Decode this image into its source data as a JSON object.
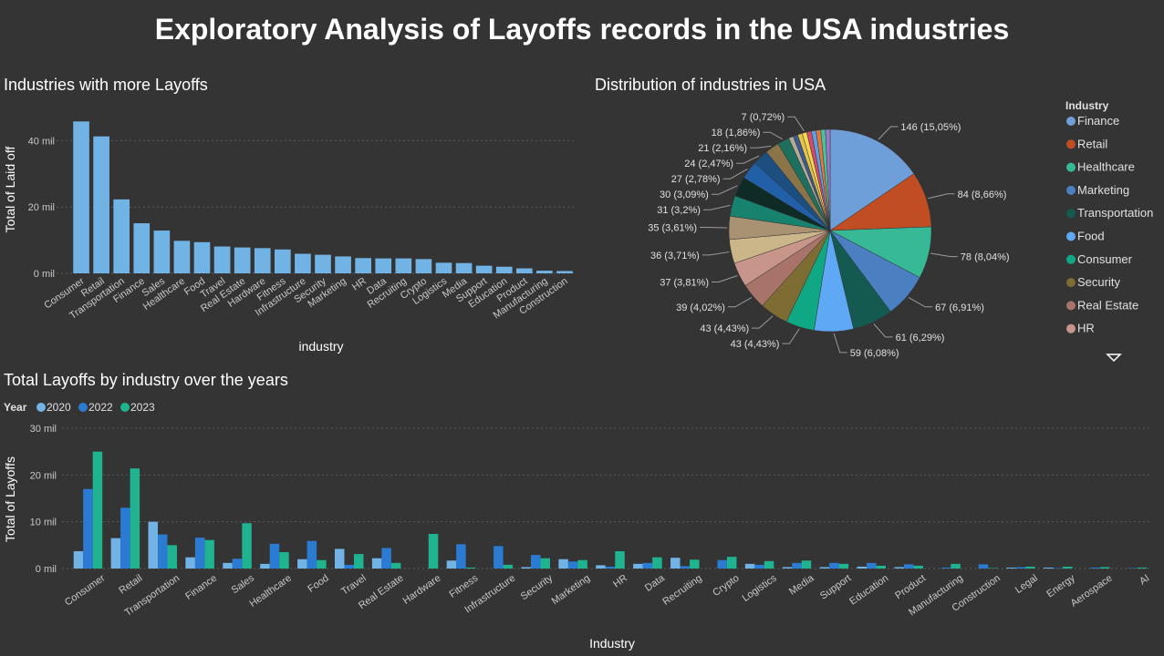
{
  "page": {
    "title": "Exploratory Analysis of Layoffs records in the USA industries"
  },
  "colors": {
    "bar": "#72b3e6",
    "y2020": "#72b3e6",
    "y2022": "#2a7bd1",
    "y2023": "#1fb38f"
  },
  "chart_data": [
    {
      "type": "bar",
      "title": "Industries with more Layoffs",
      "xlabel": "industry",
      "ylabel": "Total of Laid off",
      "yticks": [
        "0 mil",
        "20 mil",
        "40 mil"
      ],
      "ylim": [
        0,
        50000
      ],
      "grid": true,
      "categories": [
        "Consumer",
        "Retail",
        "Transportation",
        "Finance",
        "Sales",
        "Healthcare",
        "Food",
        "Travel",
        "Real Estate",
        "Hardware",
        "Fitness",
        "Infrastructure",
        "Security",
        "Marketing",
        "HR",
        "Data",
        "Recruiting",
        "Crypto",
        "Logistics",
        "Media",
        "Support",
        "Education",
        "Product",
        "Manufacturing",
        "Construction"
      ],
      "values": [
        45800,
        41300,
        22300,
        15100,
        12900,
        9800,
        9400,
        8100,
        7800,
        7600,
        7200,
        5900,
        5600,
        5100,
        4600,
        4500,
        4500,
        4300,
        3200,
        3100,
        2300,
        2000,
        1500,
        800,
        700
      ]
    },
    {
      "type": "pie",
      "title": "Distribution of industries in USA",
      "legend_title": "Industry",
      "legend_position": "right",
      "slices": [
        {
          "name": "Finance",
          "value": 146,
          "label": "146 (15,05%)",
          "color": "#6f9fd8"
        },
        {
          "name": "Retail",
          "value": 84,
          "label": "84 (8,66%)",
          "color": "#c14e22"
        },
        {
          "name": "Healthcare",
          "value": 78,
          "label": "78 (8,04%)",
          "color": "#36b994"
        },
        {
          "name": "Marketing",
          "value": 67,
          "label": "67 (6,91%)",
          "color": "#4a7fc1"
        },
        {
          "name": "Transportation",
          "value": 61,
          "label": "61 (6,29%)",
          "color": "#145a50"
        },
        {
          "name": "Food",
          "value": 59,
          "label": "59 (6,08%)",
          "color": "#5ea8f5"
        },
        {
          "name": "Consumer",
          "value": 43,
          "label": "43 (4,43%)",
          "color": "#10a884"
        },
        {
          "name": "Security",
          "value": 43,
          "label": "43 (4,43%)",
          "color": "#7e6d32"
        },
        {
          "name": "Real Estate",
          "value": 39,
          "label": "39 (4,02%)",
          "color": "#a8746a"
        },
        {
          "name": "HR",
          "value": 37,
          "label": "37 (3,81%)",
          "color": "#c7958a"
        },
        {
          "name": "",
          "value": 36,
          "label": "36 (3,71%)",
          "color": "#cbb68a"
        },
        {
          "name": "",
          "value": 35,
          "label": "35 (3,61%)",
          "color": "#a99272"
        },
        {
          "name": "",
          "value": 31,
          "label": "31 (3,2%)",
          "color": "#17826e"
        },
        {
          "name": "",
          "value": 30,
          "label": "30 (3,09%)",
          "color": "#0f2b26"
        },
        {
          "name": "",
          "value": 27,
          "label": "27 (2,78%)",
          "color": "#2160a8"
        },
        {
          "name": "",
          "value": 24,
          "label": "24 (2,47%)",
          "color": "#1c4e80"
        },
        {
          "name": "",
          "value": 21,
          "label": "21 (2,16%)",
          "color": "#8a7448"
        },
        {
          "name": "",
          "value": 18,
          "label": "18 (1,86%)",
          "color": "#1e6f5d"
        },
        {
          "name": "",
          "value": 7,
          "label": "",
          "color": "#b4aa9a"
        },
        {
          "name": "",
          "value": 7,
          "label": "",
          "color": "#3a5a90"
        },
        {
          "name": "",
          "value": 7,
          "label": "",
          "color": "#e6c24a"
        },
        {
          "name": "",
          "value": 7,
          "label": "7 (0,72%)",
          "color": "#f3d651"
        },
        {
          "name": "",
          "value": 7,
          "label": "",
          "color": "#d44a6a"
        },
        {
          "name": "",
          "value": 7,
          "label": "",
          "color": "#5da0e6"
        },
        {
          "name": "",
          "value": 7,
          "label": "",
          "color": "#e07a3a"
        },
        {
          "name": "",
          "value": 7,
          "label": "",
          "color": "#4bc0a0"
        },
        {
          "name": "",
          "value": 7,
          "label": "",
          "color": "#9a7ac8"
        }
      ]
    },
    {
      "type": "bar",
      "title": "Total Layoffs by industry over the years",
      "xlabel": "Industry",
      "ylabel": "Total of Layoffs",
      "legend_title": "Year",
      "legend_position": "top-left",
      "yticks": [
        "0 mil",
        "10 mil",
        "20 mil",
        "30 mil"
      ],
      "ylim": [
        0,
        30000
      ],
      "grid": true,
      "categories": [
        "Consumer",
        "Retail",
        "Transportation",
        "Finance",
        "Sales",
        "Healthcare",
        "Food",
        "Travel",
        "Real Estate",
        "Hardware",
        "Fitness",
        "Infrastructure",
        "Security",
        "Marketing",
        "HR",
        "Data",
        "Recruiting",
        "Crypto",
        "Logistics",
        "Media",
        "Support",
        "Education",
        "Product",
        "Manufacturing",
        "Construction",
        "Legal",
        "Energy",
        "Aerospace",
        "AI"
      ],
      "series": [
        {
          "name": "2020",
          "values": [
            3700,
            6500,
            10000,
            2400,
            1200,
            1000,
            2000,
            4200,
            2200,
            0,
            1700,
            0,
            300,
            2000,
            700,
            1000,
            2300,
            0,
            1000,
            300,
            300,
            400,
            300,
            0,
            0,
            200,
            200,
            0,
            0
          ]
        },
        {
          "name": "2022",
          "values": [
            17000,
            13000,
            7300,
            6600,
            2100,
            5300,
            5900,
            800,
            4400,
            0,
            5200,
            4800,
            2900,
            1500,
            400,
            1200,
            500,
            1800,
            800,
            1200,
            1200,
            1200,
            900,
            200,
            900,
            300,
            100,
            200,
            100
          ]
        },
        {
          "name": "2023",
          "values": [
            25000,
            21400,
            5000,
            6100,
            9700,
            3500,
            1800,
            3100,
            1200,
            7400,
            200,
            800,
            2200,
            1800,
            3700,
            2400,
            1900,
            2500,
            1600,
            1700,
            1000,
            600,
            600,
            1000,
            100,
            400,
            400,
            300,
            200
          ]
        }
      ]
    }
  ]
}
